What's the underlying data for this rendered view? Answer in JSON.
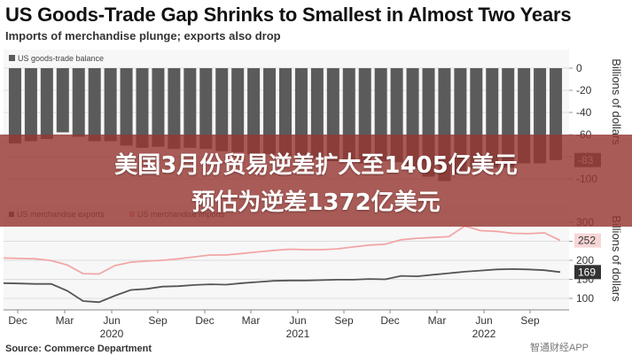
{
  "title": "US Goods-Trade Gap Shrinks to Smallest in Almost Two Years",
  "subtitle": "Imports of merchandise plunge; exports also drop",
  "source": "Source: Commerce Department",
  "watermark": "智通财经APP",
  "banner": {
    "line1": "美国3月份贸易逆差扩大至1405亿美元",
    "line2": "预估为逆差1372亿美元"
  },
  "colors": {
    "bar": "#5b5b5b",
    "exports": "#555555",
    "imports": "#f2a6a6",
    "banner": "#96372f"
  },
  "chart_data": [
    {
      "type": "bar",
      "title": "",
      "legend": [
        "US goods-trade balance"
      ],
      "legend_position": "top-left",
      "ylabel": "Billions of dollars",
      "ylim": [
        -100,
        0
      ],
      "yticks": [
        0,
        -20,
        -40,
        -60,
        -80,
        -100
      ],
      "grid": true,
      "series": [
        {
          "name": "US goods-trade balance",
          "values": [
            -68,
            -66,
            -64,
            -58,
            -62,
            -66,
            -66,
            -70,
            -72,
            -71,
            -73,
            -72,
            -73,
            -75,
            -76,
            -78,
            -78,
            -80,
            -83,
            -82,
            -84,
            -83,
            -86,
            -84,
            -85,
            -90,
            -98,
            -102,
            -96,
            -91,
            -90,
            -90,
            -86,
            -86,
            -83
          ]
        }
      ],
      "last_value_label": "-83"
    },
    {
      "type": "line",
      "title": "",
      "ylabel": "Billions of dollars",
      "ylim": [
        70,
        320
      ],
      "yticks": [
        300,
        250,
        200,
        150,
        100
      ],
      "xticks": [
        "Dec",
        "Mar",
        "Jun",
        "Sep",
        "Dec",
        "Mar",
        "Jun",
        "Sep",
        "Dec",
        "Mar",
        "Jun",
        "Sep"
      ],
      "year_labels": [
        "2020",
        "2021",
        "2022"
      ],
      "legend_position": "top-left",
      "series": [
        {
          "name": "US merchandise exports",
          "values": [
            140,
            139,
            138,
            138,
            120,
            93,
            90,
            107,
            122,
            125,
            131,
            132,
            135,
            137,
            136,
            140,
            143,
            146,
            147,
            147,
            148,
            149,
            149,
            151,
            150,
            159,
            158,
            162,
            166,
            170,
            173,
            176,
            177,
            176,
            174,
            169
          ]
        },
        {
          "name": "US merchandise imports",
          "values": [
            206,
            205,
            204,
            199,
            188,
            165,
            164,
            186,
            195,
            198,
            200,
            204,
            209,
            214,
            214,
            218,
            222,
            226,
            229,
            228,
            228,
            230,
            235,
            240,
            242,
            254,
            258,
            260,
            262,
            290,
            278,
            276,
            271,
            270,
            272,
            252
          ]
        }
      ],
      "last_value_labels": {
        "imports": "252",
        "exports": "169"
      }
    }
  ]
}
